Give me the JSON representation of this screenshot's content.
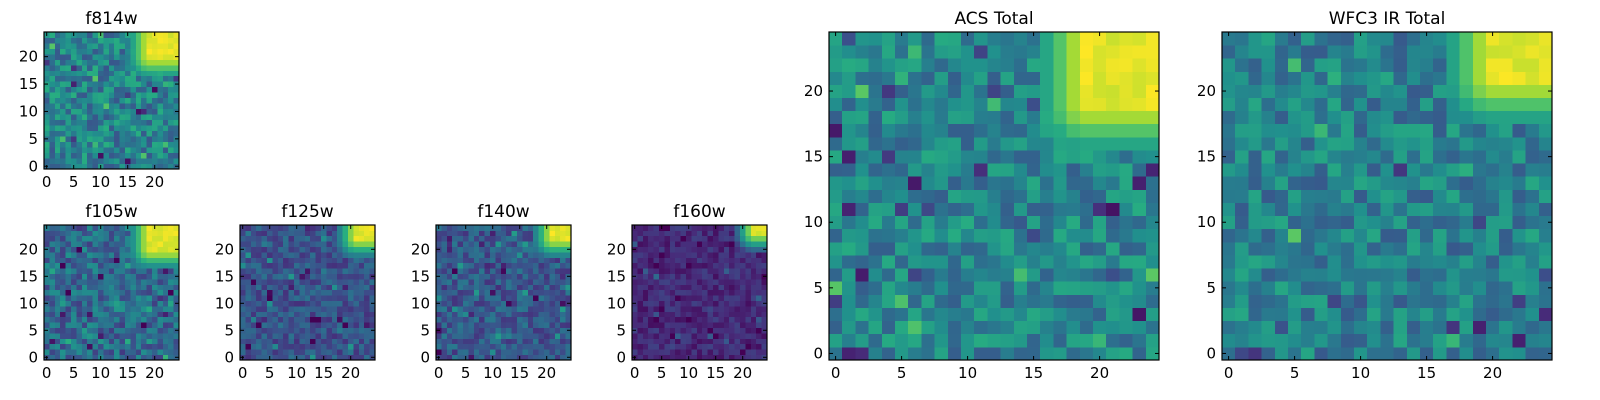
{
  "chart_data": [
    {
      "type": "heatmap",
      "title": "f814w",
      "grid_size": [
        25,
        25
      ],
      "xlim": [
        -0.5,
        24.5
      ],
      "ylim": [
        -0.5,
        24.5
      ],
      "xticks": [
        0,
        5,
        10,
        15,
        20
      ],
      "yticks": [
        0,
        5,
        10,
        15,
        20
      ],
      "colormap": "viridis",
      "value_range": [
        0,
        1
      ],
      "background_level": 0.45,
      "noise_amplitude": 0.18,
      "bright_region": {
        "cols": [
          19,
          24
        ],
        "rows": [
          20,
          24
        ],
        "peak": 1.0
      },
      "seed": 11
    },
    {
      "type": "heatmap",
      "title": "f105w",
      "grid_size": [
        25,
        25
      ],
      "xlim": [
        -0.5,
        24.5
      ],
      "ylim": [
        -0.5,
        24.5
      ],
      "xticks": [
        0,
        5,
        10,
        15,
        20
      ],
      "yticks": [
        0,
        5,
        10,
        15,
        20
      ],
      "colormap": "viridis",
      "value_range": [
        0,
        1
      ],
      "background_level": 0.35,
      "noise_amplitude": 0.16,
      "bright_region": {
        "cols": [
          19,
          24
        ],
        "rows": [
          20,
          24
        ],
        "peak": 1.0
      },
      "seed": 23
    },
    {
      "type": "heatmap",
      "title": "f125w",
      "grid_size": [
        25,
        25
      ],
      "xlim": [
        -0.5,
        24.5
      ],
      "ylim": [
        -0.5,
        24.5
      ],
      "xticks": [
        0,
        5,
        10,
        15,
        20
      ],
      "yticks": [
        0,
        5,
        10,
        15,
        20
      ],
      "colormap": "viridis",
      "value_range": [
        0,
        1
      ],
      "background_level": 0.26,
      "noise_amplitude": 0.12,
      "bright_region": {
        "cols": [
          21,
          24
        ],
        "rows": [
          22,
          24
        ],
        "peak": 1.0
      },
      "seed": 37
    },
    {
      "type": "heatmap",
      "title": "f140w",
      "grid_size": [
        25,
        25
      ],
      "xlim": [
        -0.5,
        24.5
      ],
      "ylim": [
        -0.5,
        24.5
      ],
      "xticks": [
        0,
        5,
        10,
        15,
        20
      ],
      "yticks": [
        0,
        5,
        10,
        15,
        20
      ],
      "colormap": "viridis",
      "value_range": [
        0,
        1
      ],
      "background_level": 0.28,
      "noise_amplitude": 0.13,
      "bright_region": {
        "cols": [
          21,
          24
        ],
        "rows": [
          22,
          24
        ],
        "peak": 1.0
      },
      "seed": 41
    },
    {
      "type": "heatmap",
      "title": "f160w",
      "grid_size": [
        25,
        25
      ],
      "xlim": [
        -0.5,
        24.5
      ],
      "ylim": [
        -0.5,
        24.5
      ],
      "xticks": [
        0,
        5,
        10,
        15,
        20
      ],
      "yticks": [
        0,
        5,
        10,
        15,
        20
      ],
      "colormap": "viridis",
      "value_range": [
        0,
        1
      ],
      "background_level": 0.12,
      "noise_amplitude": 0.08,
      "bright_region": {
        "cols": [
          22,
          24
        ],
        "rows": [
          23,
          24
        ],
        "peak": 1.0
      },
      "seed": 53
    },
    {
      "type": "heatmap",
      "title": "ACS Total",
      "grid_size": [
        25,
        25
      ],
      "xlim": [
        -0.5,
        24.5
      ],
      "ylim": [
        -0.5,
        24.5
      ],
      "xticks": [
        0,
        5,
        10,
        15,
        20
      ],
      "yticks": [
        0,
        5,
        10,
        15,
        20
      ],
      "colormap": "viridis",
      "value_range": [
        0,
        1
      ],
      "background_level": 0.46,
      "noise_amplitude": 0.16,
      "bright_region": {
        "cols": [
          19,
          24
        ],
        "rows": [
          19,
          24
        ],
        "peak": 1.0
      },
      "seed": 67
    },
    {
      "type": "heatmap",
      "title": "WFC3 IR Total",
      "grid_size": [
        25,
        25
      ],
      "xlim": [
        -0.5,
        24.5
      ],
      "ylim": [
        -0.5,
        24.5
      ],
      "xticks": [
        0,
        5,
        10,
        15,
        20
      ],
      "yticks": [
        0,
        5,
        10,
        15,
        20
      ],
      "colormap": "viridis",
      "value_range": [
        0,
        1
      ],
      "background_level": 0.44,
      "noise_amplitude": 0.16,
      "bright_region": {
        "cols": [
          20,
          24
        ],
        "rows": [
          21,
          24
        ],
        "peak": 1.0
      },
      "seed": 79
    }
  ]
}
